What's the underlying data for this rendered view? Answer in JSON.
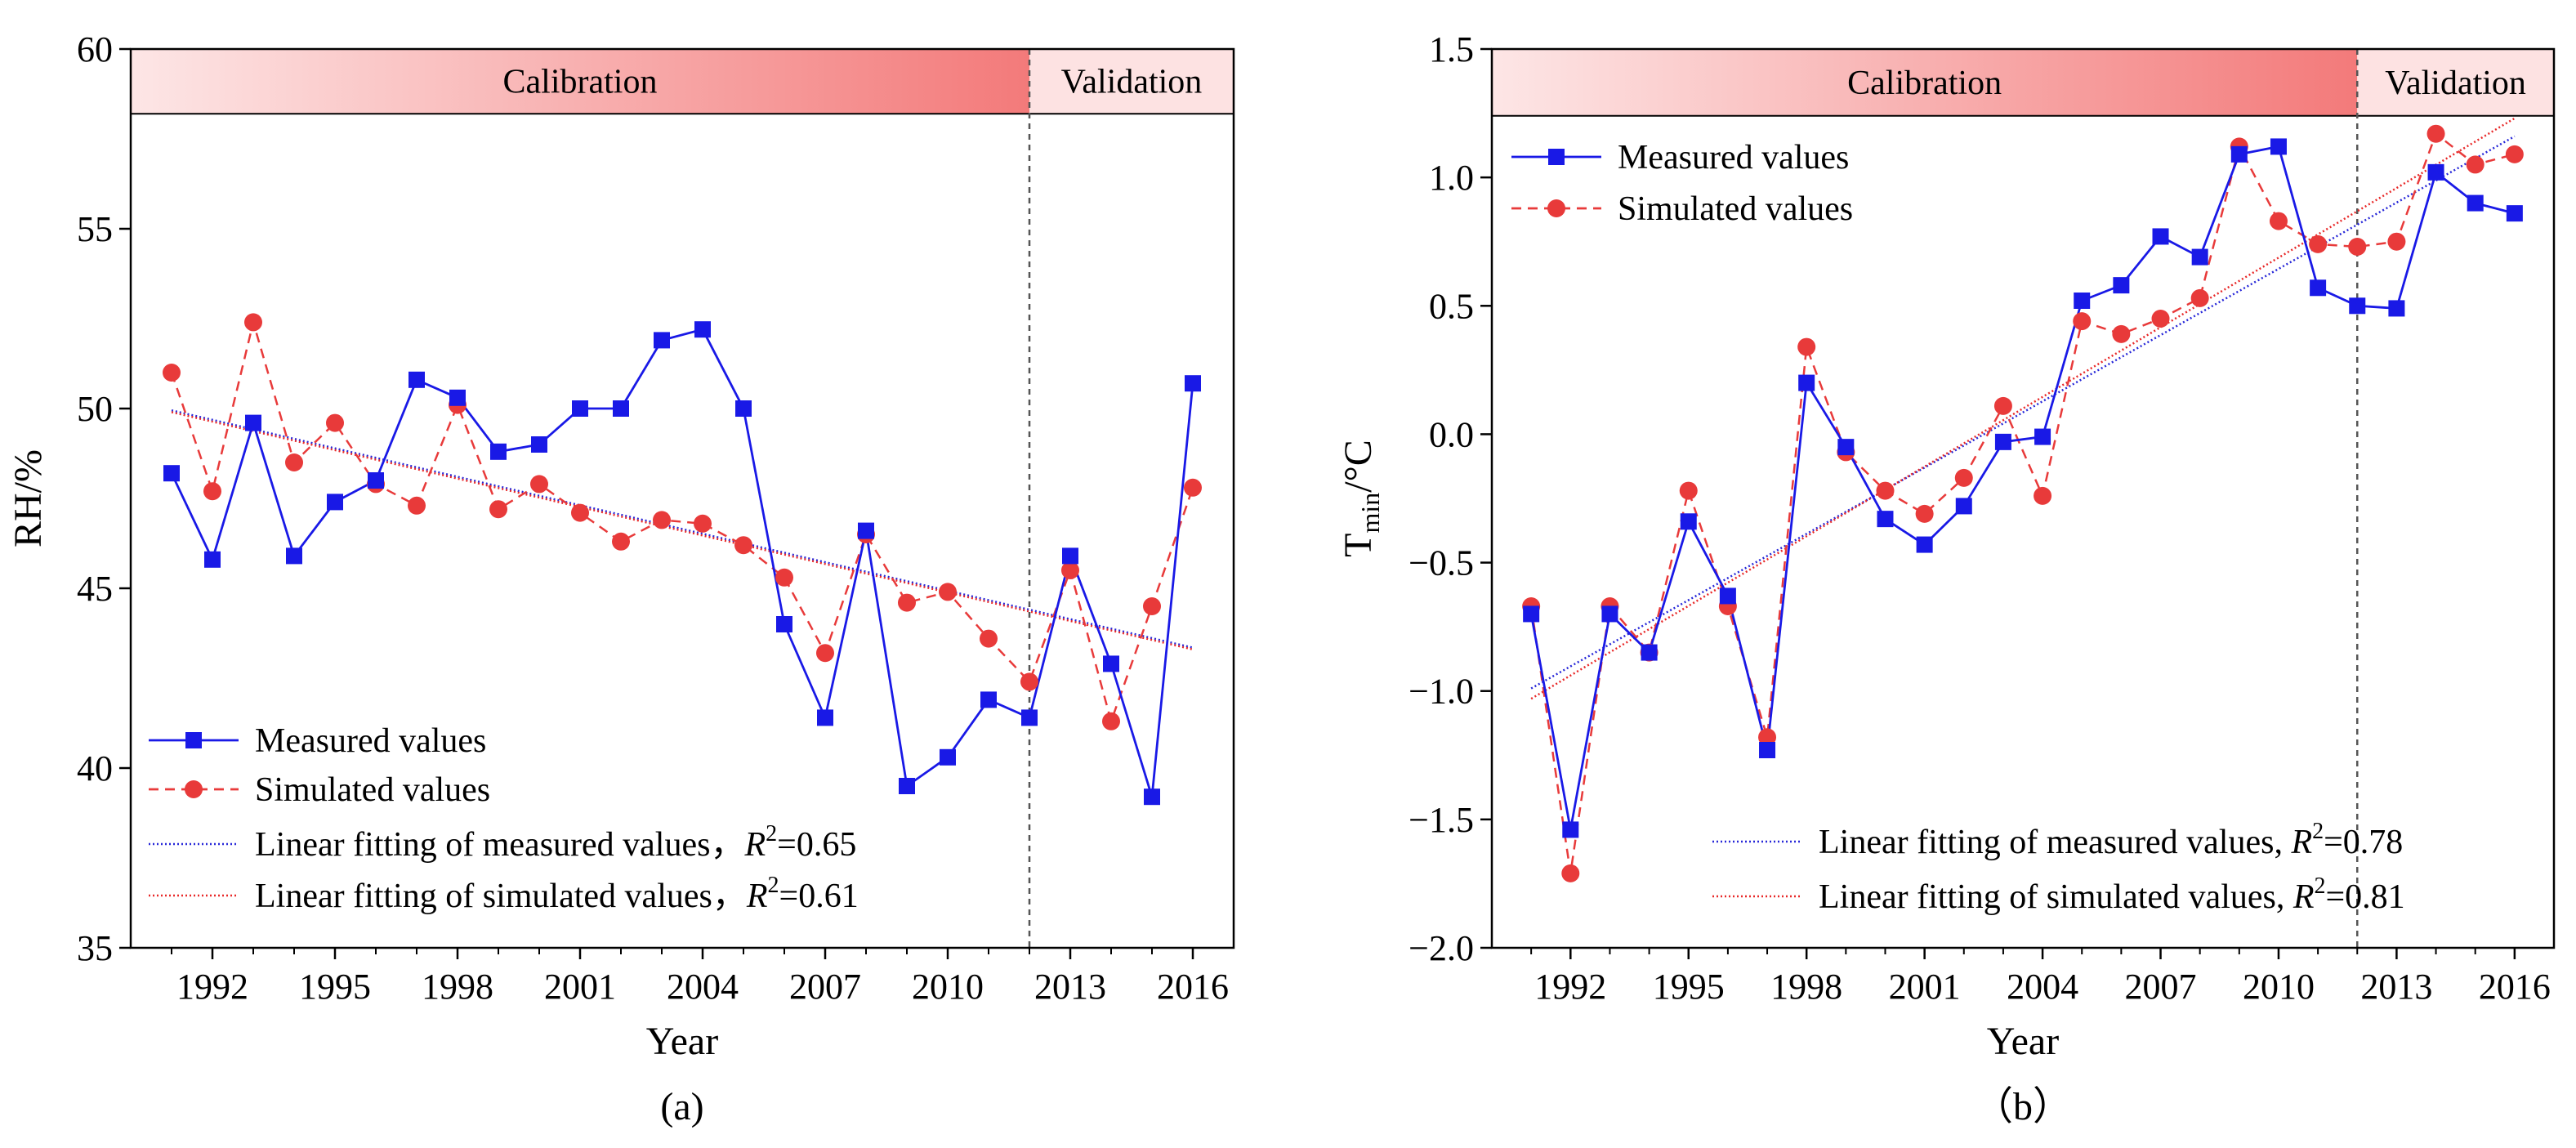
{
  "colors": {
    "measured": "#1919e6",
    "simulated": "#e83a3a",
    "fit_measured": "#2727d8",
    "fit_simulated": "#e82828",
    "calibration_band_from": "#fde6e6",
    "calibration_band_to": "#f37a7a",
    "validation_band": "#fde2e2"
  },
  "chart_data": [
    {
      "type": "line",
      "panel_label": "(a)",
      "xlabel": "Year",
      "ylabel": "RH/%",
      "xlim": [
        1990,
        2017
      ],
      "ylim": [
        35,
        60
      ],
      "xticks": [
        1992,
        1995,
        1998,
        2001,
        2004,
        2007,
        2010,
        2013,
        2016
      ],
      "yticks": [
        35,
        40,
        45,
        50,
        55,
        60
      ],
      "band_top": 58.2,
      "split_year": 2012,
      "bands": {
        "calibration": "Calibration",
        "validation": "Validation"
      },
      "legend_position": "bottom-left",
      "series": [
        {
          "name": "Measured values",
          "marker": "square",
          "style": "solid",
          "x": [
            1991,
            1992,
            1993,
            1994,
            1995,
            1996,
            1997,
            1998,
            1999,
            2000,
            2001,
            2002,
            2003,
            2004,
            2005,
            2006,
            2007,
            2008,
            2009,
            2010,
            2011,
            2012,
            2013,
            2014,
            2015,
            2016
          ],
          "values": [
            48.2,
            45.8,
            49.6,
            45.9,
            47.4,
            48.0,
            50.8,
            50.3,
            48.8,
            49.0,
            50.0,
            50.0,
            51.9,
            52.2,
            50.0,
            44.0,
            41.4,
            46.6,
            39.5,
            40.3,
            41.9,
            41.4,
            45.9,
            42.9,
            39.2,
            50.7
          ]
        },
        {
          "name": "Simulated values",
          "marker": "circle",
          "style": "dashed",
          "x": [
            1991,
            1992,
            1993,
            1994,
            1995,
            1996,
            1997,
            1998,
            1999,
            2000,
            2001,
            2002,
            2003,
            2004,
            2005,
            2006,
            2007,
            2008,
            2009,
            2010,
            2011,
            2012,
            2013,
            2014,
            2015,
            2016
          ],
          "values": [
            51.0,
            47.7,
            52.4,
            48.5,
            49.6,
            47.9,
            47.3,
            50.1,
            47.2,
            47.9,
            47.1,
            46.3,
            46.9,
            46.8,
            46.2,
            45.3,
            43.2,
            46.5,
            44.6,
            44.9,
            43.6,
            42.4,
            45.5,
            41.3,
            44.5,
            47.8
          ]
        }
      ],
      "fits": [
        {
          "name": "Linear fitting of measured values",
          "label_sep": "，",
          "r2_label": "R",
          "r2_value": "=0.65",
          "x": [
            1991,
            2016
          ],
          "values": [
            49.95,
            43.35
          ],
          "style": "dotted"
        },
        {
          "name": "Linear fitting of simulated values",
          "label_sep": "，",
          "r2_label": "R",
          "r2_value": "=0.61",
          "x": [
            1991,
            2016
          ],
          "values": [
            49.9,
            43.3
          ],
          "style": "dotted"
        }
      ]
    },
    {
      "type": "line",
      "panel_label": "（b）",
      "xlabel": "Year",
      "ylabel_main": "T",
      "ylabel_sub": "min",
      "ylabel_rest": "/°C",
      "xlim": [
        1990,
        2017
      ],
      "ylim": [
        -2.0,
        1.5
      ],
      "xticks": [
        1992,
        1995,
        1998,
        2001,
        2004,
        2007,
        2010,
        2013,
        2016
      ],
      "yticks": [
        -2.0,
        -1.5,
        -1.0,
        -0.5,
        0.0,
        0.5,
        1.0,
        1.5
      ],
      "ytick_labels": [
        "−2.0",
        "−1.5",
        "−1.0",
        "−0.5",
        "0.0",
        "0.5",
        "1.0",
        "1.5"
      ],
      "band_top": 1.24,
      "split_year": 2012,
      "bands": {
        "calibration": "Calibration",
        "validation": "Validation"
      },
      "legend_position": "top-left / bottom-right",
      "series": [
        {
          "name": "Measured values",
          "marker": "square",
          "style": "solid",
          "x": [
            1991,
            1992,
            1993,
            1994,
            1995,
            1996,
            1997,
            1998,
            1999,
            2000,
            2001,
            2002,
            2003,
            2004,
            2005,
            2006,
            2007,
            2008,
            2009,
            2010,
            2011,
            2012,
            2013,
            2014,
            2015,
            2016
          ],
          "values": [
            -0.7,
            -1.54,
            -0.7,
            -0.85,
            -0.34,
            -0.63,
            -1.23,
            0.2,
            -0.05,
            -0.33,
            -0.43,
            -0.28,
            -0.03,
            -0.01,
            0.52,
            0.58,
            0.77,
            0.69,
            1.09,
            1.12,
            0.57,
            0.5,
            0.49,
            1.02,
            0.9,
            0.86
          ]
        },
        {
          "name": "Simulated values",
          "marker": "circle",
          "style": "dashed",
          "x": [
            1991,
            1992,
            1993,
            1994,
            1995,
            1996,
            1997,
            1998,
            1999,
            2000,
            2001,
            2002,
            2003,
            2004,
            2005,
            2006,
            2007,
            2008,
            2009,
            2010,
            2011,
            2012,
            2013,
            2014,
            2015,
            2016
          ],
          "values": [
            -0.67,
            -1.71,
            -0.67,
            -0.85,
            -0.22,
            -0.67,
            -1.18,
            0.34,
            -0.07,
            -0.22,
            -0.31,
            -0.17,
            0.11,
            -0.24,
            0.44,
            0.39,
            0.45,
            0.53,
            1.12,
            0.83,
            0.74,
            0.73,
            0.75,
            1.17,
            1.05,
            1.09
          ]
        }
      ],
      "fits": [
        {
          "name": "Linear fitting of measured values,",
          "label_sep": " ",
          "r2_label": "R",
          "r2_value": "=0.78",
          "x": [
            1991,
            2016
          ],
          "values": [
            -0.99,
            1.16
          ],
          "style": "dotted"
        },
        {
          "name": "Linear fitting of simulated values,",
          "label_sep": " ",
          "r2_label": "R",
          "r2_value": "=0.81",
          "x": [
            1991,
            2016
          ],
          "values": [
            -1.03,
            1.23
          ],
          "style": "dotted"
        }
      ]
    }
  ]
}
